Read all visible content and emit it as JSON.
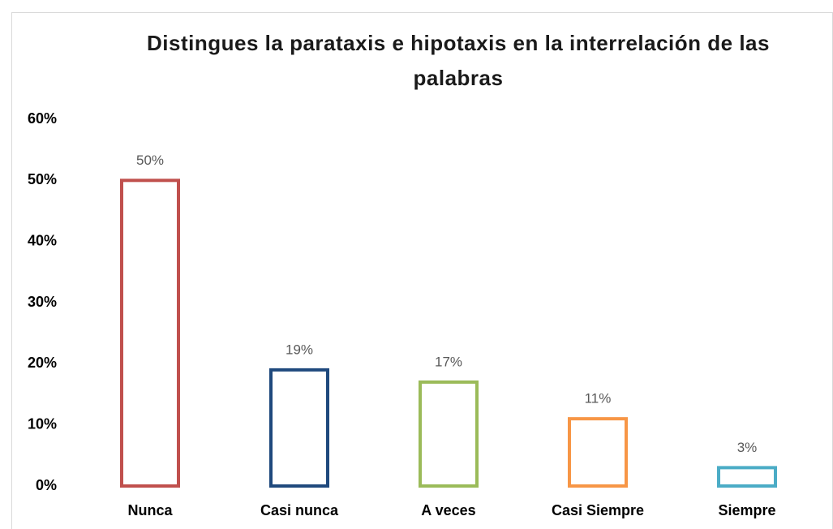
{
  "chart_data": {
    "type": "bar",
    "title": "Distingues la parataxis e hipotaxis en la interrelación de las palabras",
    "categories": [
      "Nunca",
      "Casi nunca",
      "A veces",
      "Casi Siempre",
      "Siempre"
    ],
    "values": [
      50,
      19,
      17,
      11,
      3
    ],
    "value_labels": [
      "50%",
      "19%",
      "17%",
      "11%",
      "3%"
    ],
    "colors": [
      "#c0504d",
      "#1f497d",
      "#9bbb59",
      "#f79646",
      "#4bacc6"
    ],
    "ylim": [
      0,
      60
    ],
    "yticks": [
      {
        "value": 0,
        "label": "0%"
      },
      {
        "value": 10,
        "label": "10%"
      },
      {
        "value": 20,
        "label": "20%"
      },
      {
        "value": 30,
        "label": "30%"
      },
      {
        "value": 40,
        "label": "40%"
      },
      {
        "value": 50,
        "label": "50%"
      },
      {
        "value": 60,
        "label": "60%"
      }
    ],
    "grid": false
  }
}
